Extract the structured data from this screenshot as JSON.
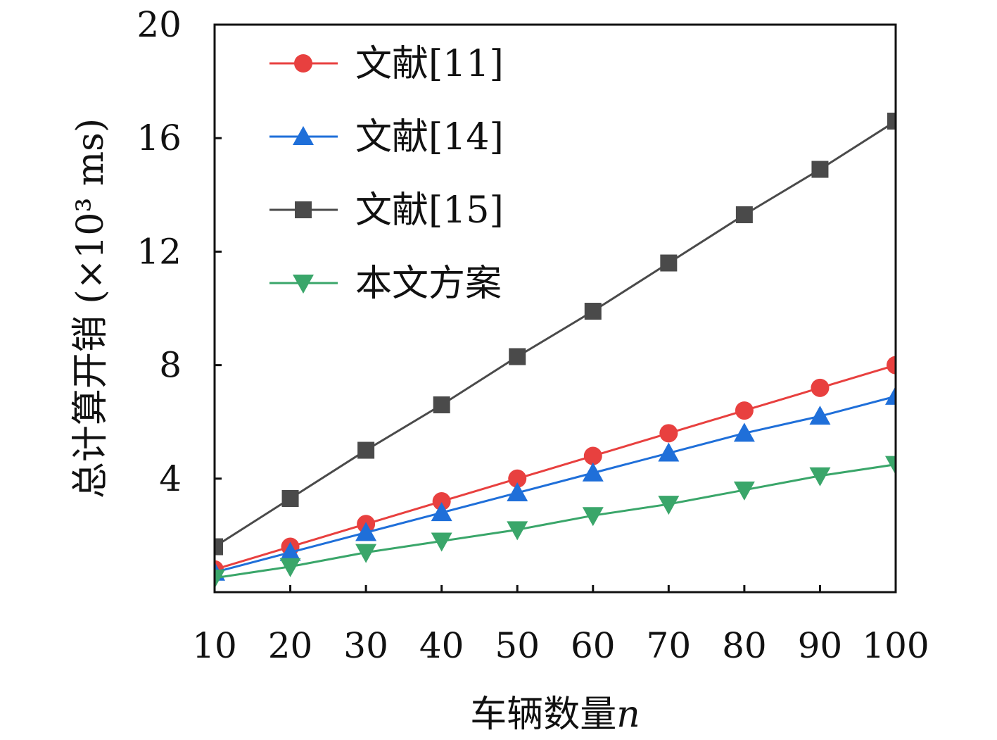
{
  "chart_data": {
    "type": "line",
    "title": "",
    "xlabel": "车辆数量n",
    "xlabel_main": "车辆数量",
    "xlabel_var": "n",
    "ylabel": "总计算开销 (×10³ ms)",
    "x": [
      10,
      20,
      30,
      40,
      50,
      60,
      70,
      80,
      90,
      100
    ],
    "xticks": [
      "10",
      "20",
      "30",
      "40",
      "50",
      "60",
      "70",
      "80",
      "90",
      "100"
    ],
    "yticks": [
      "4",
      "8",
      "12",
      "16",
      "20"
    ],
    "xlim": [
      10,
      100
    ],
    "ylim": [
      0,
      20
    ],
    "grid": false,
    "legend_position": "top-left",
    "series": [
      {
        "name": "文献[11]",
        "marker": "circle",
        "color": "#e8403f",
        "values": [
          0.8,
          1.6,
          2.4,
          3.2,
          4.0,
          4.8,
          5.6,
          6.4,
          7.2,
          8.0
        ]
      },
      {
        "name": "文献[14]",
        "marker": "triangle-up",
        "color": "#1f6fd9",
        "values": [
          0.7,
          1.4,
          2.1,
          2.8,
          3.5,
          4.2,
          4.9,
          5.6,
          6.2,
          6.9
        ]
      },
      {
        "name": "文献[15]",
        "marker": "square",
        "color": "#4a4a4a",
        "values": [
          1.6,
          3.3,
          5.0,
          6.6,
          8.3,
          9.9,
          11.6,
          13.3,
          14.9,
          16.6
        ]
      },
      {
        "name": "本文方案",
        "marker": "triangle-down",
        "color": "#3aa66a",
        "values": [
          0.5,
          0.9,
          1.4,
          1.8,
          2.2,
          2.7,
          3.1,
          3.6,
          4.1,
          4.5
        ]
      }
    ]
  }
}
